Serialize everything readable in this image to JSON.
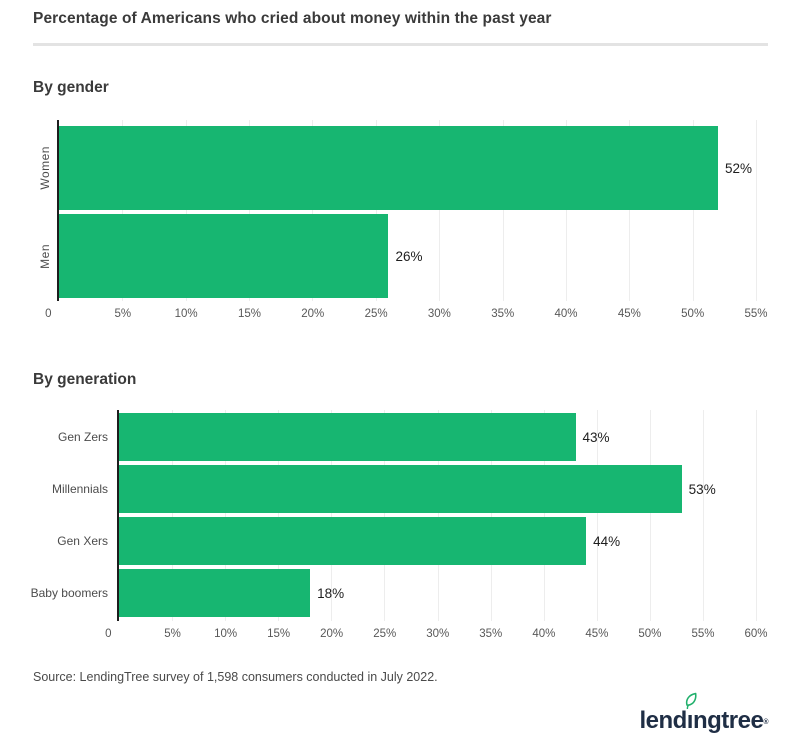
{
  "page": {
    "title": "Percentage of Americans who cried about money within the past year",
    "source": "Source: LendingTree survey of 1,598 consumers conducted in July 2022."
  },
  "colors": {
    "bar_green": "#17b671",
    "axis": "#1d1d1d",
    "gridline": "#ededed",
    "divider": "#e3e3e3",
    "logo_navy": "#1f2e45",
    "leaf_green": "#21b06c"
  },
  "logo": {
    "pre": "lend",
    "i": "ı",
    "post": "ngtree",
    "reg": "®",
    "leaf_icon": "leaf-icon",
    "name": "lendingtree"
  },
  "chart_data": [
    {
      "type": "bar",
      "orientation": "horizontal",
      "title": "By gender",
      "categories": [
        "Women",
        "Men"
      ],
      "values": [
        52,
        26
      ],
      "value_labels": [
        "52%",
        "26%"
      ],
      "xlim": [
        0,
        55
      ],
      "tick_values": [
        0,
        5,
        10,
        15,
        20,
        25,
        30,
        35,
        40,
        45,
        50,
        55
      ],
      "tick_labels": [
        "0",
        "5%",
        "10%",
        "15%",
        "20%",
        "25%",
        "30%",
        "35%",
        "40%",
        "45%",
        "50%",
        "55%"
      ],
      "grid": true,
      "legend": "none",
      "category_label_rotation": -90
    },
    {
      "type": "bar",
      "orientation": "horizontal",
      "title": "By generation",
      "categories": [
        "Gen Zers",
        "Millennials",
        "Gen Xers",
        "Baby boomers"
      ],
      "values": [
        43,
        53,
        44,
        18
      ],
      "value_labels": [
        "43%",
        "53%",
        "44%",
        "18%"
      ],
      "xlim": [
        0,
        60
      ],
      "tick_values": [
        0,
        5,
        10,
        15,
        20,
        25,
        30,
        35,
        40,
        45,
        50,
        55,
        60
      ],
      "tick_labels": [
        "0",
        "5%",
        "10%",
        "15%",
        "20%",
        "25%",
        "30%",
        "35%",
        "40%",
        "45%",
        "50%",
        "55%",
        "60%"
      ],
      "grid": true,
      "legend": "none",
      "category_label_rotation": 0
    }
  ]
}
